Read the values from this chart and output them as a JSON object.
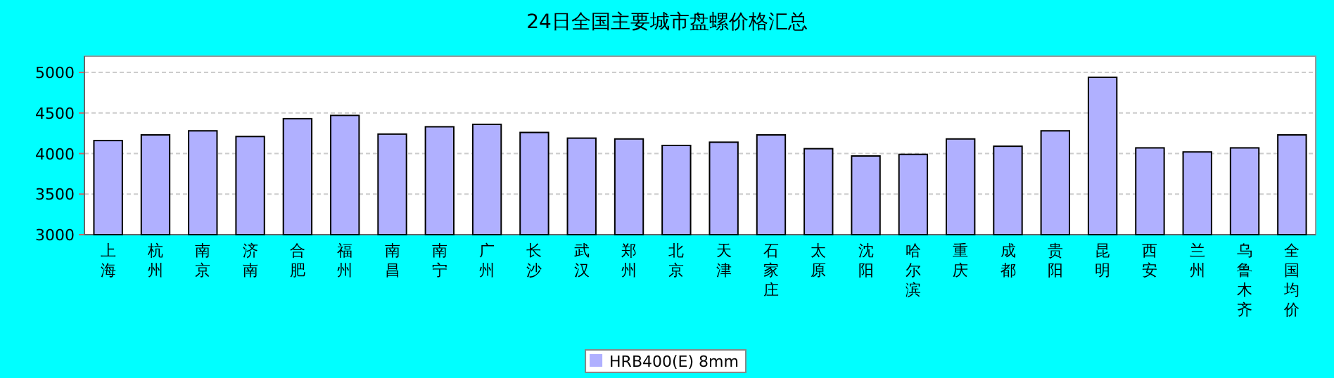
{
  "chart_data": {
    "type": "bar",
    "title": "24日全国主要城市盘螺价格汇总",
    "categories": [
      "上海",
      "杭州",
      "南京",
      "济南",
      "合肥",
      "福州",
      "南昌",
      "南宁",
      "广州",
      "长沙",
      "武汉",
      "郑州",
      "北京",
      "天津",
      "石家庄",
      "太原",
      "沈阳",
      "哈尔滨",
      "重庆",
      "成都",
      "贵阳",
      "昆明",
      "西安",
      "兰州",
      "乌鲁木齐",
      "全国均价"
    ],
    "series": [
      {
        "name": "HRB400(E) 8mm",
        "color": "#b0b0ff",
        "values": [
          4160,
          4230,
          4280,
          4210,
          4430,
          4470,
          4240,
          4330,
          4360,
          4260,
          4190,
          4180,
          4100,
          4140,
          4230,
          4060,
          3970,
          3990,
          4180,
          4090,
          4280,
          4940,
          4070,
          4020,
          4070,
          4230
        ]
      }
    ],
    "ylim": [
      3000,
      5200
    ],
    "yticks": [
      3000,
      3500,
      4000,
      4500,
      5000
    ],
    "grid": "y",
    "legend": "bottom"
  }
}
